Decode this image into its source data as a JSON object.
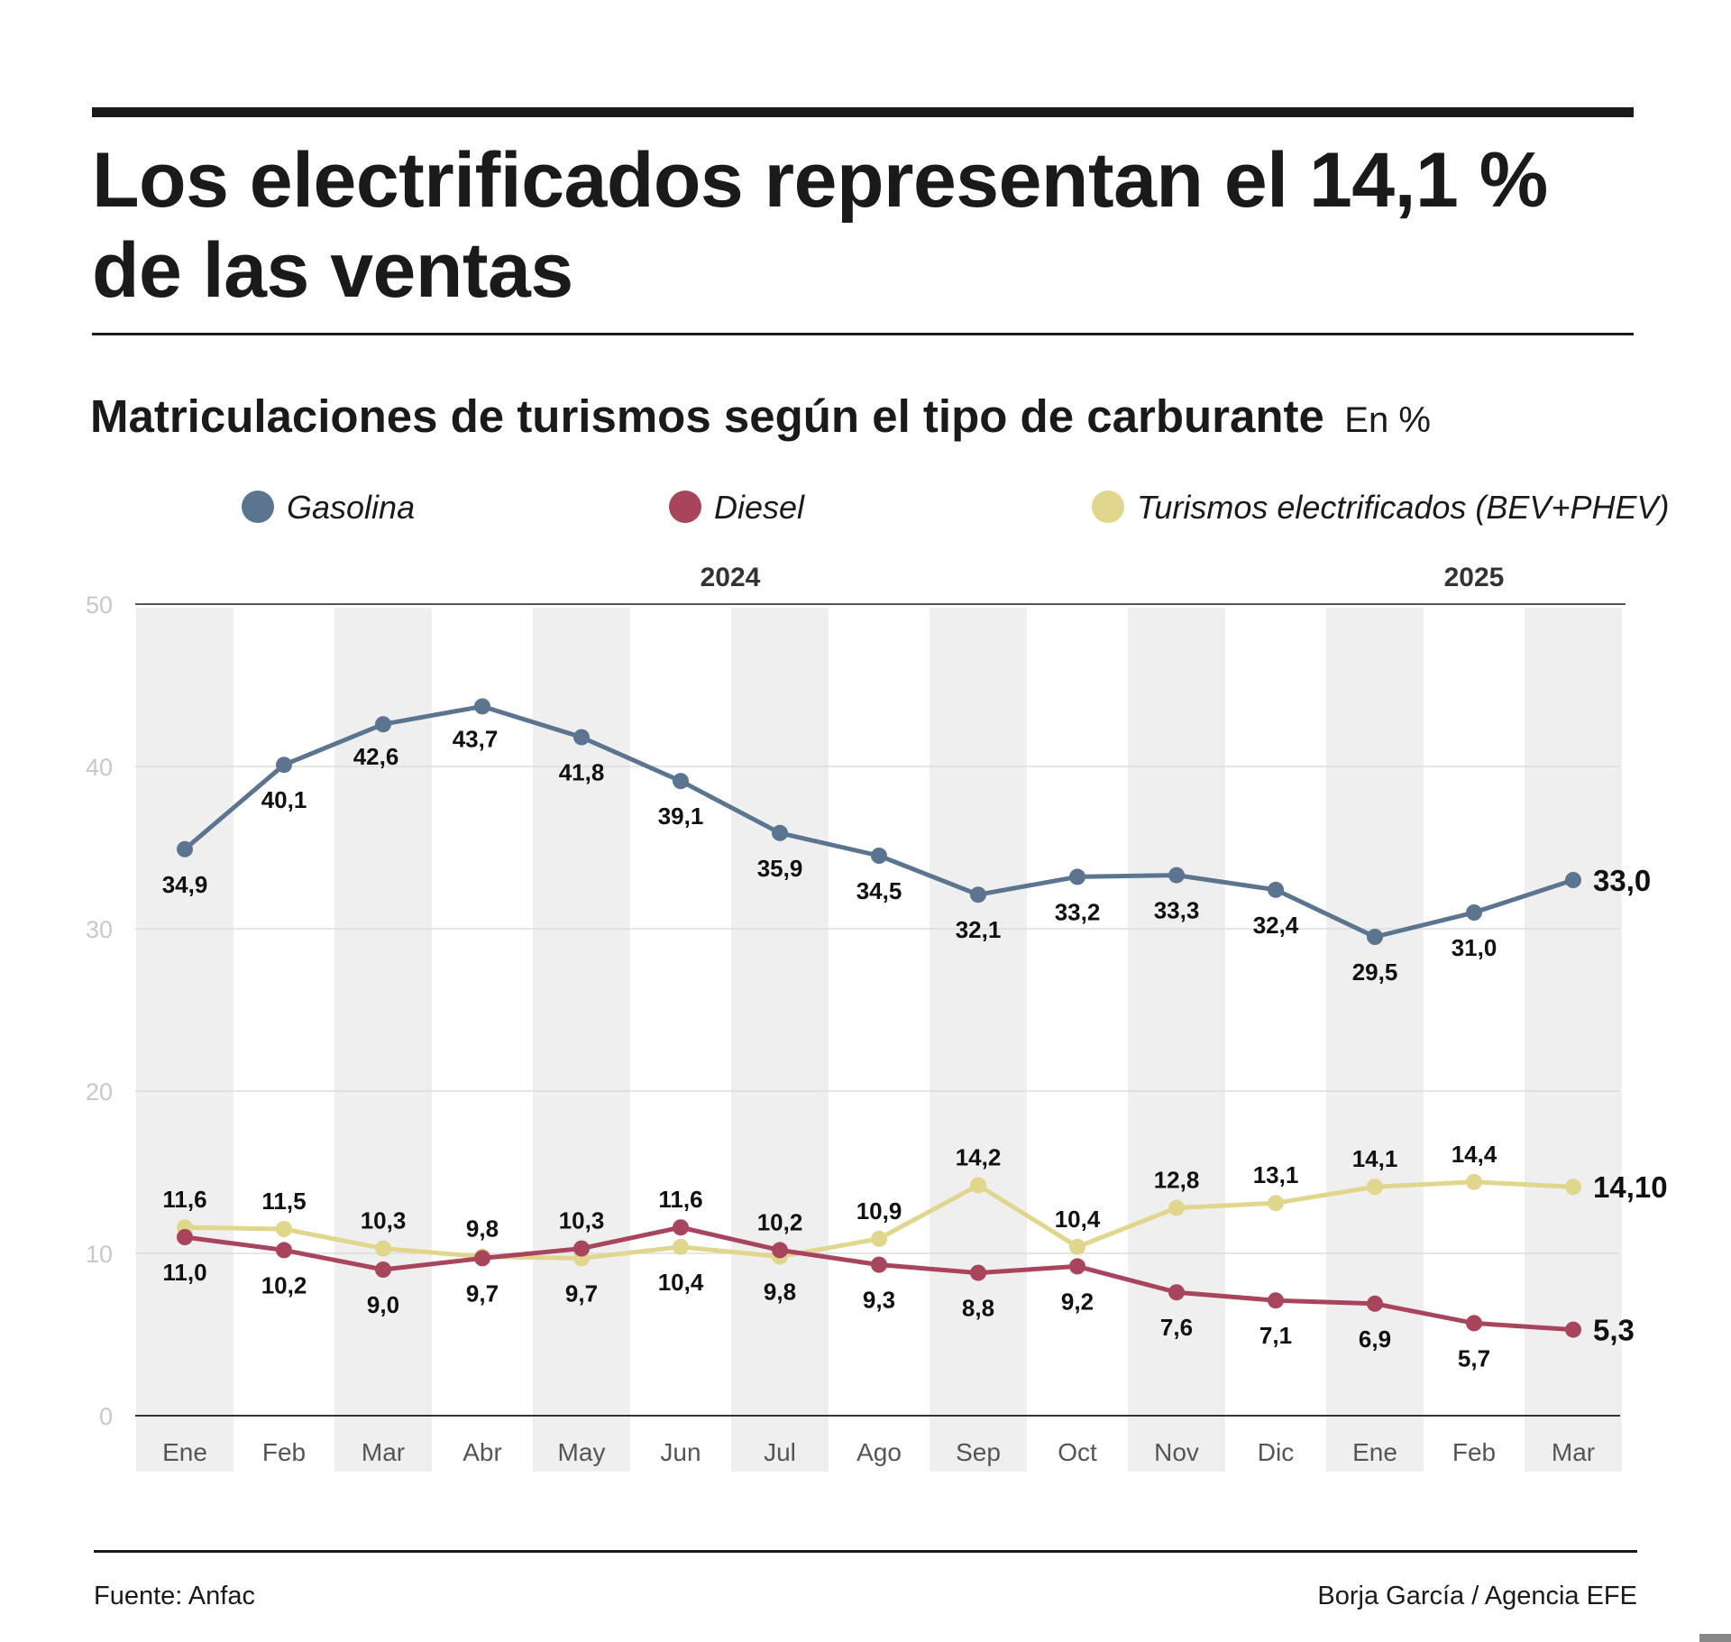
{
  "header": {
    "title": "Los electrificados representan el 14,1 % de las ventas"
  },
  "chart_data": {
    "type": "line",
    "title": "Matriculaciones de turismos según el tipo de carburante",
    "unit": "En %",
    "categories": [
      "Ene",
      "Feb",
      "Mar",
      "Abr",
      "May",
      "Jun",
      "Jul",
      "Ago",
      "Sep",
      "Oct",
      "Nov",
      "Dic",
      "Ene",
      "Feb",
      "Mar"
    ],
    "year_groups": [
      {
        "label": "2024",
        "from": 0,
        "to": 11
      },
      {
        "label": "2025",
        "from": 12,
        "to": 14
      }
    ],
    "ylim": [
      0,
      50
    ],
    "yticks": [
      0,
      10,
      20,
      30,
      40,
      50
    ],
    "grid": true,
    "legend_position": "top",
    "series": [
      {
        "name": "Gasolina",
        "color": "#5b7590",
        "values": [
          34.9,
          40.1,
          42.6,
          43.7,
          41.8,
          39.1,
          35.9,
          34.5,
          32.1,
          33.2,
          33.3,
          32.4,
          29.5,
          31.0,
          33.0
        ],
        "labels": [
          "34,9",
          "40,1",
          "42,6",
          "43,7",
          "41,8",
          "39,1",
          "35,9",
          "34,5",
          "32,1",
          "33,2",
          "33,3",
          "32,4",
          "29,5",
          "31,0",
          "33,0"
        ]
      },
      {
        "name": "Diesel",
        "color": "#a8455d",
        "values": [
          11.0,
          10.2,
          9.0,
          9.7,
          10.3,
          11.6,
          10.2,
          9.3,
          8.8,
          9.2,
          7.6,
          7.1,
          6.9,
          5.7,
          5.3
        ],
        "labels": [
          "11,0",
          "10,2",
          "9,0",
          "9,7",
          "10,3",
          "11,6",
          "10,2",
          "9,3",
          "8,8",
          "9,2",
          "7,6",
          "7,1",
          "6,9",
          "5,7",
          "5,3"
        ]
      },
      {
        "name": "Turismos electrificados (BEV+PHEV)",
        "color": "#e0d68c",
        "values": [
          11.6,
          11.5,
          10.3,
          9.8,
          9.7,
          10.4,
          9.8,
          10.9,
          14.2,
          10.4,
          12.8,
          13.1,
          14.1,
          14.4,
          14.1
        ],
        "labels": [
          "11,6",
          "11,5",
          "10,3",
          "9,8",
          "9,7",
          "10,4",
          "9,8",
          "10,9",
          "14,2",
          "10,4",
          "12,8",
          "13,1",
          "14,1",
          "14,4",
          "14,10"
        ]
      }
    ]
  },
  "footer": {
    "source": "Fuente: Anfac",
    "credit": "Borja García / Agencia EFE"
  }
}
